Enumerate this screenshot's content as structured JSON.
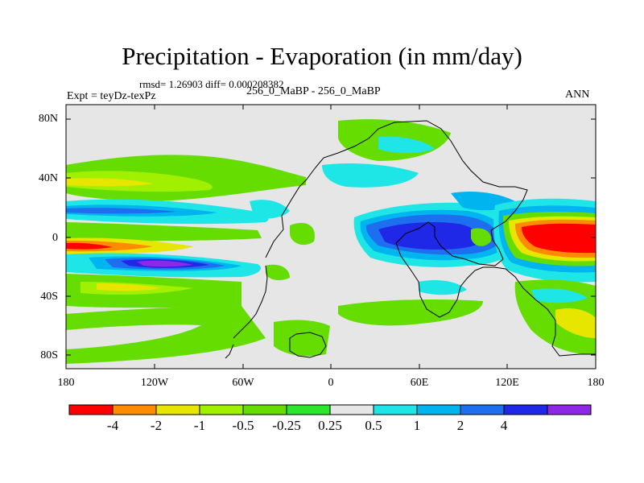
{
  "title": "Precipitation - Evaporation (in mm/day)",
  "stats": "rmsd= 1.26903 diff= 0.000208382",
  "experiment": "Expt = teyDz-texPz",
  "case": "256_0_MaBP - 256_0_MaBP",
  "season": "ANN",
  "y_ticks": [
    "80N",
    "40N",
    "0",
    "40S",
    "80S"
  ],
  "x_ticks": [
    "180",
    "120W",
    "60W",
    "0",
    "60E",
    "120E",
    "180"
  ],
  "colorbar": {
    "labels": [
      "-4",
      "-2",
      "-1",
      "-0.5",
      "-0.25",
      "0.25",
      "0.5",
      "1",
      "2",
      "4"
    ],
    "colors": [
      "#ff0000",
      "#ff8c00",
      "#e6e600",
      "#a0f000",
      "#66dd00",
      "#2ce62c",
      "#e6e6e6",
      "#1ee6e6",
      "#00b4f0",
      "#1e6ef0",
      "#1e28e6",
      "#8c28e6"
    ]
  },
  "background_color": "#e6e6e6"
}
